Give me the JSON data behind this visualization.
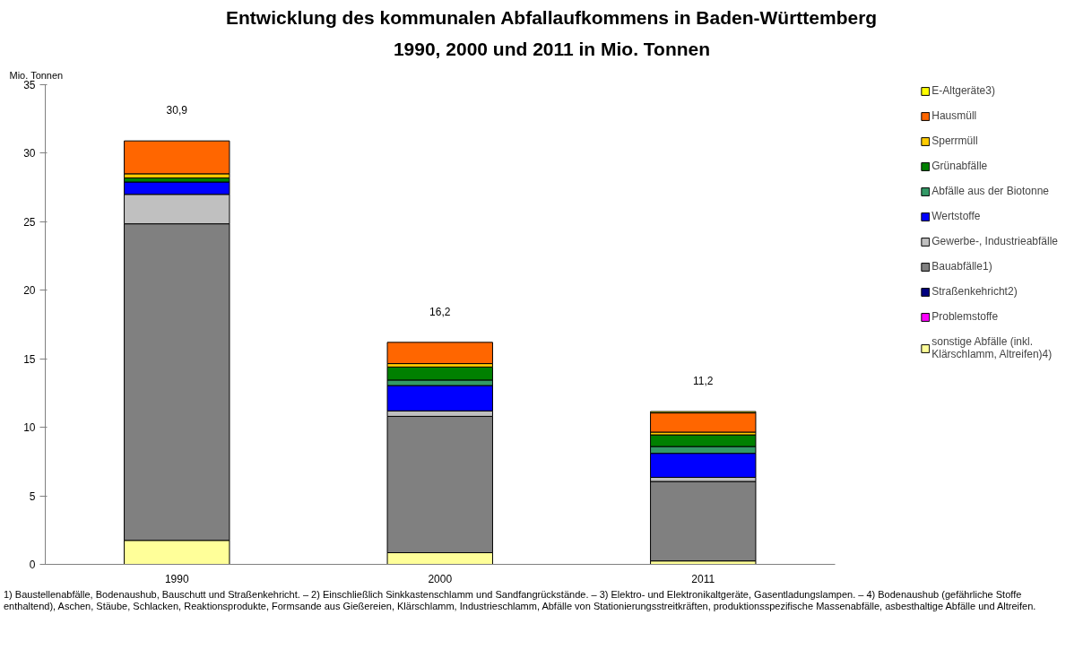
{
  "chart_data": {
    "type": "bar",
    "stacked": true,
    "title": "Entwicklung des kommunalen Abfallaufkommens in Baden-Württemberg",
    "subtitle": "1990, 2000 und 2011 in Mio. Tonnen",
    "ylabel": "Mio. Tonnen",
    "categories": [
      "1990",
      "2000",
      "2011"
    ],
    "series": [
      {
        "name": "sonstige Abfälle (inkl. Klärschlamm, Altreifen)4)",
        "color": "#ffff99",
        "values": [
          1.75,
          0.85,
          0.25
        ]
      },
      {
        "name": "Problemstoffe",
        "color": "#ff00ff",
        "values": [
          null,
          null,
          null
        ]
      },
      {
        "name": "Straßenkehricht2)",
        "color": "#000080",
        "values": [
          null,
          null,
          null
        ]
      },
      {
        "name": "Bauabfälle1)",
        "color": "#808080",
        "values": [
          23.1,
          9.95,
          5.8
        ]
      },
      {
        "name": "Gewerbe-, Industrieabfälle",
        "color": "#c0c0c0",
        "values": [
          2.15,
          0.4,
          0.3
        ]
      },
      {
        "name": "Wertstoffe",
        "color": "#0000ff",
        "values": [
          0.9,
          1.85,
          1.75
        ]
      },
      {
        "name": "Abfälle aus der Biotonne",
        "color": "#339966",
        "values": [
          null,
          0.4,
          0.5
        ]
      },
      {
        "name": "Grünabfälle",
        "color": "#008000",
        "values": [
          0.3,
          0.95,
          0.85
        ]
      },
      {
        "name": "Sperrmüll",
        "color": "#ffcc00",
        "values": [
          0.3,
          0.25,
          0.2
        ]
      },
      {
        "name": "Hausmüll",
        "color": "#ff6600",
        "values": [
          2.4,
          1.55,
          1.4
        ]
      },
      {
        "name": "E-Altgeräte3)",
        "color": "#ffff00",
        "values": [
          null,
          null,
          0.1
        ]
      }
    ],
    "totals": [
      "30,9",
      "16,2",
      "11,2"
    ],
    "ylim": [
      0,
      35
    ],
    "yticks": [
      0,
      5,
      10,
      15,
      20,
      25,
      30,
      35
    ],
    "grid": false,
    "legend": "right",
    "annotations": [
      "1) Baustellenabfälle, Bodenaushub, Bauschutt und Straßenkehricht. – 2) Einschließlich Sinkkastenschlamm und Sandfangrückstände. – 3) Elektro- und Elektronikaltgeräte, Gasentladungslampen. – 4) Bodenaushub (gefährliche Stoffe enthaltend), Aschen, Stäube, Schlacken, Reaktionsprodukte, Formsande aus Gießereien, Klärschlamm, Industrieschlamm, Abfälle von Stationierungsstreitkräften, produktionsspezifische Massenabfälle, asbesthaltige Abfälle und Altreifen."
    ]
  }
}
